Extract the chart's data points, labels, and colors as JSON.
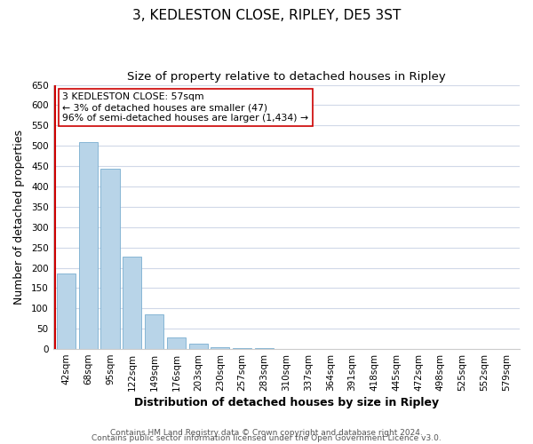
{
  "title": "3, KEDLESTON CLOSE, RIPLEY, DE5 3ST",
  "subtitle": "Size of property relative to detached houses in Ripley",
  "xlabel": "Distribution of detached houses by size in Ripley",
  "ylabel": "Number of detached properties",
  "bar_labels": [
    "42sqm",
    "68sqm",
    "95sqm",
    "122sqm",
    "149sqm",
    "176sqm",
    "203sqm",
    "230sqm",
    "257sqm",
    "283sqm",
    "310sqm",
    "337sqm",
    "364sqm",
    "391sqm",
    "418sqm",
    "445sqm",
    "472sqm",
    "498sqm",
    "525sqm",
    "552sqm",
    "579sqm"
  ],
  "bar_values": [
    185,
    510,
    443,
    228,
    85,
    28,
    13,
    5,
    3,
    2,
    1,
    0,
    1,
    0,
    0,
    1,
    0,
    0,
    0,
    0,
    1
  ],
  "bar_color": "#b8d4e8",
  "bar_edge_color": "#7aaed0",
  "marker_line_color": "#cc0000",
  "annotation_line1": "3 KEDLESTON CLOSE: 57sqm",
  "annotation_line2": "← 3% of detached houses are smaller (47)",
  "annotation_line3": "96% of semi-detached houses are larger (1,434) →",
  "annotation_box_color": "#ffffff",
  "annotation_box_edge": "#cc0000",
  "ylim": [
    0,
    650
  ],
  "yticks": [
    0,
    50,
    100,
    150,
    200,
    250,
    300,
    350,
    400,
    450,
    500,
    550,
    600,
    650
  ],
  "footer_line1": "Contains HM Land Registry data © Crown copyright and database right 2024.",
  "footer_line2": "Contains public sector information licensed under the Open Government Licence v3.0.",
  "background_color": "#ffffff",
  "grid_color": "#d0d8e8",
  "title_fontsize": 11,
  "subtitle_fontsize": 9.5,
  "axis_label_fontsize": 9,
  "tick_fontsize": 7.5,
  "annotation_fontsize": 7.8,
  "footer_fontsize": 6.5
}
